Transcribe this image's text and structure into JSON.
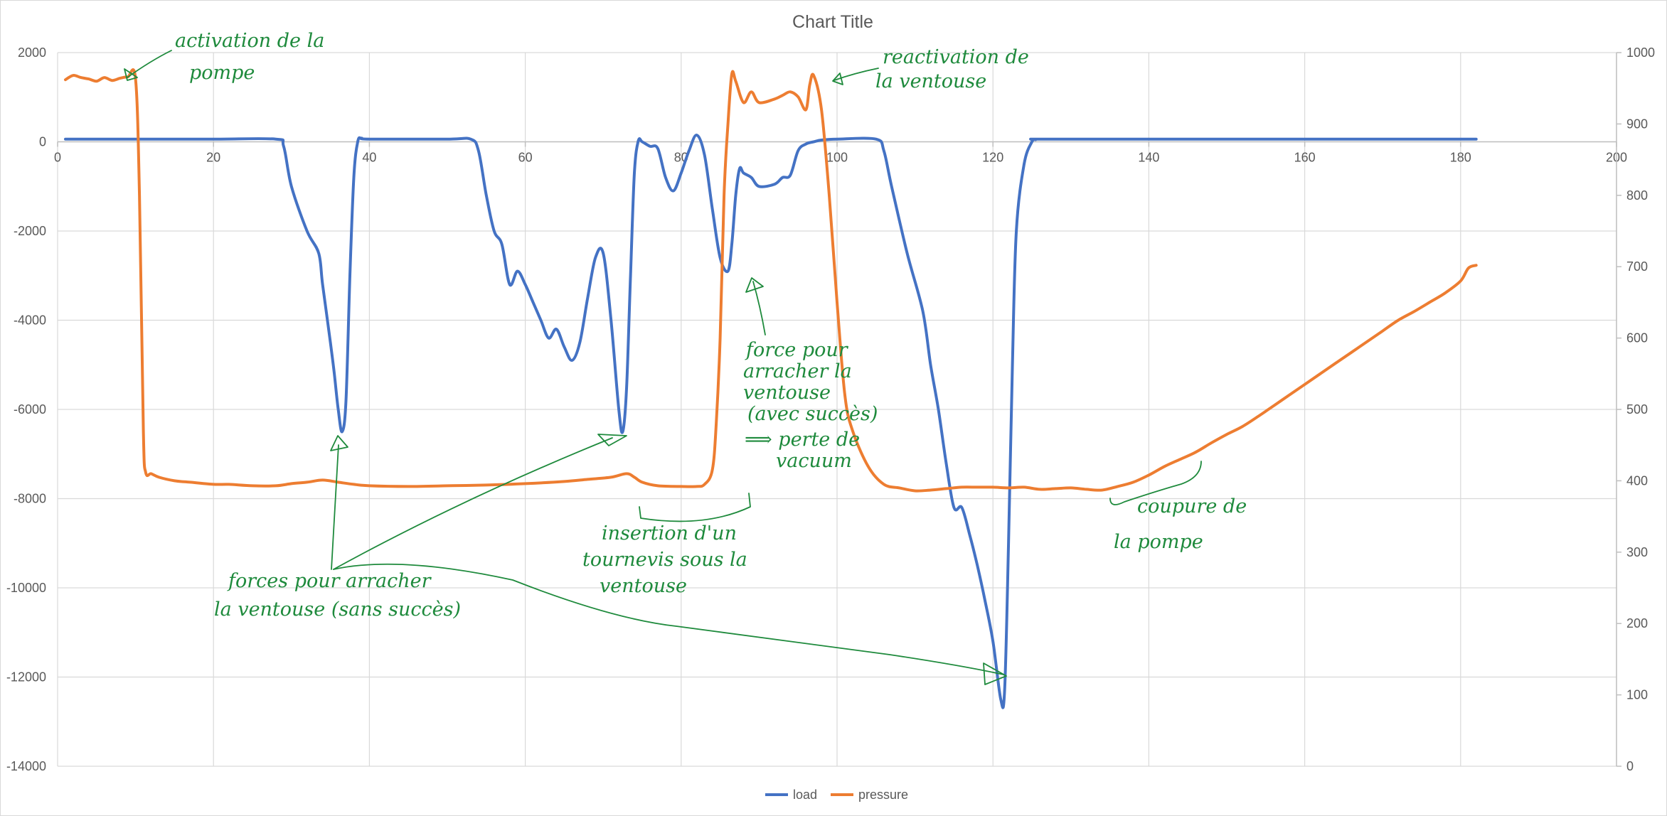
{
  "chart_data": {
    "type": "line",
    "title": "Chart Title",
    "xlim": [
      0,
      200
    ],
    "x_ticks": [
      0,
      20,
      40,
      60,
      80,
      100,
      120,
      140,
      160,
      180,
      200
    ],
    "y_left_lim": [
      -14000,
      2000
    ],
    "y_left_ticks": [
      2000,
      0,
      -2000,
      -4000,
      -6000,
      -8000,
      -10000,
      -12000,
      -14000
    ],
    "y_right_lim": [
      0,
      1000
    ],
    "y_right_ticks": [
      1000,
      900,
      800,
      700,
      600,
      500,
      400,
      300,
      200,
      100,
      0
    ],
    "grid": true,
    "legend_position": "bottom",
    "series": [
      {
        "name": "load",
        "axis": "left",
        "color": "#4472c4",
        "points": [
          [
            1,
            60
          ],
          [
            10,
            60
          ],
          [
            20,
            60
          ],
          [
            28,
            60
          ],
          [
            29,
            -100
          ],
          [
            30,
            -1000
          ],
          [
            32,
            -2000
          ],
          [
            33.5,
            -2500
          ],
          [
            34,
            -3200
          ],
          [
            35,
            -4500
          ],
          [
            35.5,
            -5200
          ],
          [
            36,
            -6000
          ],
          [
            36.5,
            -6500
          ],
          [
            37,
            -5800
          ],
          [
            37.5,
            -3000
          ],
          [
            38,
            -800
          ],
          [
            38.5,
            0
          ],
          [
            39,
            80
          ],
          [
            40,
            60
          ],
          [
            50,
            60
          ],
          [
            53,
            60
          ],
          [
            54,
            -200
          ],
          [
            55,
            -1200
          ],
          [
            56,
            -2000
          ],
          [
            57,
            -2300
          ],
          [
            58,
            -3200
          ],
          [
            59,
            -2900
          ],
          [
            60,
            -3200
          ],
          [
            61,
            -3600
          ],
          [
            62,
            -4000
          ],
          [
            63,
            -4400
          ],
          [
            64,
            -4200
          ],
          [
            65,
            -4600
          ],
          [
            66,
            -4900
          ],
          [
            67,
            -4500
          ],
          [
            68,
            -3500
          ],
          [
            69,
            -2600
          ],
          [
            70,
            -2500
          ],
          [
            71,
            -4000
          ],
          [
            72,
            -6000
          ],
          [
            72.5,
            -6500
          ],
          [
            73,
            -5500
          ],
          [
            73.5,
            -3000
          ],
          [
            74,
            -700
          ],
          [
            74.5,
            20
          ],
          [
            75,
            0
          ],
          [
            76,
            -100
          ],
          [
            77,
            -150
          ],
          [
            78,
            -800
          ],
          [
            79,
            -1100
          ],
          [
            80,
            -700
          ],
          [
            81,
            -200
          ],
          [
            82,
            150
          ],
          [
            83,
            -300
          ],
          [
            84,
            -1500
          ],
          [
            85,
            -2600
          ],
          [
            86,
            -2900
          ],
          [
            86.5,
            -2300
          ],
          [
            87,
            -1200
          ],
          [
            87.5,
            -600
          ],
          [
            88,
            -700
          ],
          [
            89,
            -800
          ],
          [
            90,
            -1000
          ],
          [
            92,
            -950
          ],
          [
            93,
            -800
          ],
          [
            94,
            -750
          ],
          [
            95,
            -200
          ],
          [
            96,
            -50
          ],
          [
            97,
            0
          ],
          [
            98,
            40
          ],
          [
            100,
            60
          ],
          [
            105,
            60
          ],
          [
            106,
            -200
          ],
          [
            107,
            -1000
          ],
          [
            109,
            -2500
          ],
          [
            111,
            -3800
          ],
          [
            112,
            -5000
          ],
          [
            113,
            -6000
          ],
          [
            114,
            -7200
          ],
          [
            115,
            -8200
          ],
          [
            116,
            -8200
          ],
          [
            117,
            -8800
          ],
          [
            118,
            -9500
          ],
          [
            119,
            -10300
          ],
          [
            120,
            -11200
          ],
          [
            121,
            -12500
          ],
          [
            121.5,
            -12300
          ],
          [
            122,
            -9000
          ],
          [
            122.5,
            -5000
          ],
          [
            123,
            -2000
          ],
          [
            124,
            -500
          ],
          [
            125,
            0
          ],
          [
            125.5,
            50
          ],
          [
            126,
            60
          ],
          [
            140,
            60
          ],
          [
            160,
            60
          ],
          [
            182,
            60
          ]
        ]
      },
      {
        "name": "pressure",
        "axis": "right",
        "color": "#ed7d31",
        "points": [
          [
            1,
            962
          ],
          [
            2,
            968
          ],
          [
            3,
            965
          ],
          [
            4,
            963
          ],
          [
            5,
            960
          ],
          [
            6,
            965
          ],
          [
            7,
            961
          ],
          [
            8,
            964
          ],
          [
            9,
            966
          ],
          [
            10,
            963
          ],
          [
            10.5,
            800
          ],
          [
            11,
            470
          ],
          [
            11.3,
            412
          ],
          [
            12,
            410
          ],
          [
            13,
            405
          ],
          [
            15,
            400
          ],
          [
            17,
            398
          ],
          [
            20,
            395
          ],
          [
            22,
            395
          ],
          [
            25,
            393
          ],
          [
            28,
            393
          ],
          [
            30,
            396
          ],
          [
            32,
            398
          ],
          [
            34,
            401
          ],
          [
            36,
            398
          ],
          [
            38,
            395
          ],
          [
            40,
            393
          ],
          [
            45,
            392
          ],
          [
            50,
            393
          ],
          [
            55,
            394
          ],
          [
            60,
            396
          ],
          [
            65,
            399
          ],
          [
            68,
            402
          ],
          [
            71,
            405
          ],
          [
            73,
            410
          ],
          [
            74,
            405
          ],
          [
            75,
            398
          ],
          [
            77,
            393
          ],
          [
            80,
            392
          ],
          [
            82,
            392
          ],
          [
            83,
            395
          ],
          [
            84,
            415
          ],
          [
            84.5,
            480
          ],
          [
            85,
            600
          ],
          [
            85.5,
            800
          ],
          [
            86,
            900
          ],
          [
            86.5,
            970
          ],
          [
            87,
            960
          ],
          [
            88,
            930
          ],
          [
            89,
            945
          ],
          [
            90,
            930
          ],
          [
            92,
            935
          ],
          [
            93,
            940
          ],
          [
            94,
            945
          ],
          [
            95,
            938
          ],
          [
            96,
            920
          ],
          [
            96.5,
            955
          ],
          [
            97,
            968
          ],
          [
            98,
            920
          ],
          [
            99,
            800
          ],
          [
            100,
            650
          ],
          [
            101,
            520
          ],
          [
            102,
            470
          ],
          [
            104,
            420
          ],
          [
            106,
            395
          ],
          [
            108,
            390
          ],
          [
            110,
            386
          ],
          [
            112,
            387
          ],
          [
            114,
            389
          ],
          [
            116,
            391
          ],
          [
            118,
            391
          ],
          [
            120,
            391
          ],
          [
            122,
            390
          ],
          [
            124,
            391
          ],
          [
            126,
            388
          ],
          [
            128,
            389
          ],
          [
            130,
            390
          ],
          [
            132,
            388
          ],
          [
            134,
            387
          ],
          [
            136,
            392
          ],
          [
            138,
            398
          ],
          [
            140,
            408
          ],
          [
            142,
            420
          ],
          [
            144,
            430
          ],
          [
            146,
            440
          ],
          [
            148,
            453
          ],
          [
            150,
            465
          ],
          [
            152,
            476
          ],
          [
            154,
            490
          ],
          [
            156,
            505
          ],
          [
            158,
            520
          ],
          [
            160,
            535
          ],
          [
            162,
            550
          ],
          [
            164,
            565
          ],
          [
            166,
            580
          ],
          [
            168,
            595
          ],
          [
            170,
            610
          ],
          [
            172,
            625
          ],
          [
            174,
            637
          ],
          [
            176,
            650
          ],
          [
            178,
            663
          ],
          [
            180,
            680
          ],
          [
            181,
            698
          ],
          [
            182,
            702
          ]
        ]
      }
    ],
    "annotations": {
      "activation": [
        "activation de la",
        "pompe"
      ],
      "reactivation": [
        "reactivation de",
        "la ventouse"
      ],
      "force_success": [
        "force pour",
        "arracher la",
        "ventouse",
        "(avec succès)",
        "⟹ perte de",
        "vacuum"
      ],
      "insertion": [
        "insertion d'un",
        "tournevis sous la",
        "ventouse"
      ],
      "forces_fail": [
        "forces pour arracher",
        "la ventouse (sans succès)"
      ],
      "coupure": [
        "coupure de",
        "la pompe"
      ]
    },
    "annotation_color": "#1e8a3c"
  }
}
